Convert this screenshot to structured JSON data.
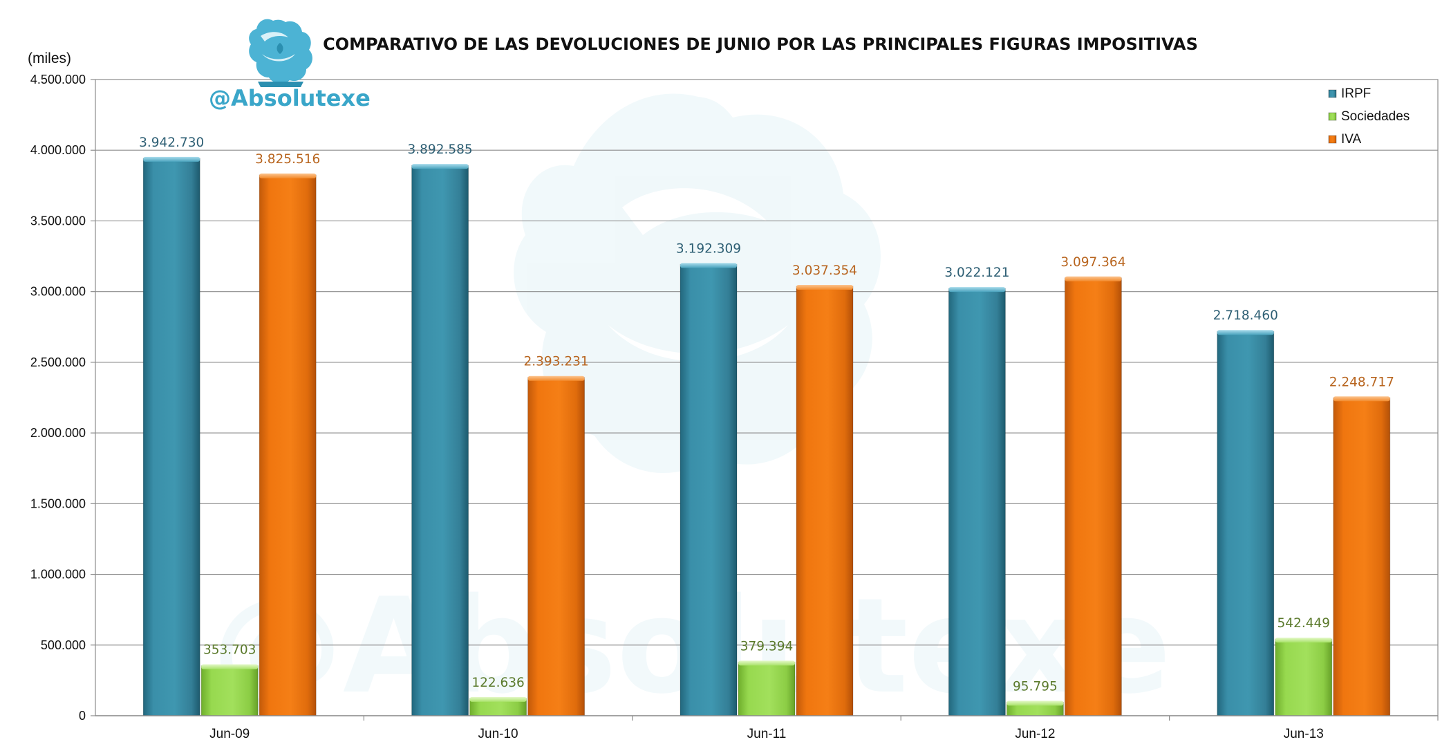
{
  "brand": {
    "handle": "@Absolutexe",
    "logo_icon": "griffin-logo-icon",
    "watermark_icon": "griffin-watermark-icon",
    "accent": "#3aa6c9"
  },
  "chart_data": {
    "type": "bar",
    "title": "COMPARATIVO DE LAS DEVOLUCIONES DE JUNIO POR LAS PRINCIPALES FIGURAS IMPOSITIVAS",
    "unit_label": "(miles)",
    "xlabel": "",
    "ylabel": "",
    "ylim": [
      0,
      4500000
    ],
    "y_ticks": [
      0,
      500000,
      1000000,
      1500000,
      2000000,
      2500000,
      3000000,
      3500000,
      4000000,
      4500000
    ],
    "y_tick_labels": [
      "0",
      "500.000",
      "1.000.000",
      "1.500.000",
      "2.000.000",
      "2.500.000",
      "3.000.000",
      "3.500.000",
      "4.000.000",
      "4.500.000"
    ],
    "grid": true,
    "legend_position": "top-right",
    "categories": [
      "Jun-09",
      "Jun-10",
      "Jun-11",
      "Jun-12",
      "Jun-13"
    ],
    "series": [
      {
        "name": "IRPF",
        "color": "#3a8fa9",
        "label_color": "#2e5f74",
        "values": [
          3942730,
          3892585,
          3192309,
          3022121,
          2718460
        ],
        "labels": [
          "3.942.730",
          "3.892.585",
          "3.192.309",
          "3.022.121",
          "2.718.460"
        ]
      },
      {
        "name": "Sociedades",
        "color": "#97d94f",
        "label_color": "#5b7a2c",
        "values": [
          353703,
          122636,
          379394,
          95795,
          542449
        ],
        "labels": [
          "353.703",
          "122.636",
          "379.394",
          "95.795",
          "542.449"
        ]
      },
      {
        "name": "IVA",
        "color": "#f0760f",
        "label_color": "#b8651f",
        "values": [
          3825516,
          2393231,
          3037354,
          3097364,
          2248717
        ],
        "labels": [
          "3.825.516",
          "2.393.231",
          "3.037.354",
          "3.097.364",
          "2.248.717"
        ]
      }
    ]
  }
}
